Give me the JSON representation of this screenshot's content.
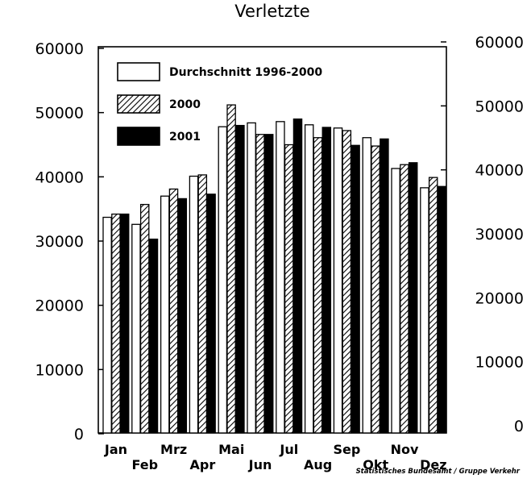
{
  "chart_data": {
    "type": "bar",
    "title": "Verletzte",
    "source_note": "Statistisches Bundesamt / Gruppe Verkehr",
    "categories": [
      "Jan",
      "Feb",
      "Mrz",
      "Apr",
      "Mai",
      "Jun",
      "Jul",
      "Aug",
      "Sep",
      "Okt",
      "Nov",
      "Dez"
    ],
    "series": [
      {
        "name": "Durchschnitt 1996-2000",
        "values": [
          33700,
          32600,
          37000,
          40100,
          47800,
          48400,
          48600,
          48100,
          47600,
          46100,
          41300,
          38300
        ]
      },
      {
        "name": "2000",
        "values": [
          34200,
          35700,
          38100,
          40300,
          51200,
          46600,
          45000,
          46100,
          47200,
          44800,
          41900,
          39900
        ]
      },
      {
        "name": "2001",
        "values": [
          34200,
          30300,
          36600,
          37300,
          48000,
          46600,
          49000,
          47700,
          44900,
          45900,
          42200,
          38500
        ]
      }
    ],
    "ylim": [
      0,
      60000
    ],
    "yticks_left": [
      "0",
      "10000",
      "20000",
      "30000",
      "40000",
      "50000",
      "60000"
    ],
    "yticks_right": [
      "0",
      "10000",
      "20000",
      "30000",
      "40000",
      "50000",
      "60000"
    ],
    "legend_position": "top-left",
    "grid": false,
    "colors": {
      "series_0": "#ffffff",
      "series_1": "hatched",
      "series_2": "#000000"
    }
  }
}
